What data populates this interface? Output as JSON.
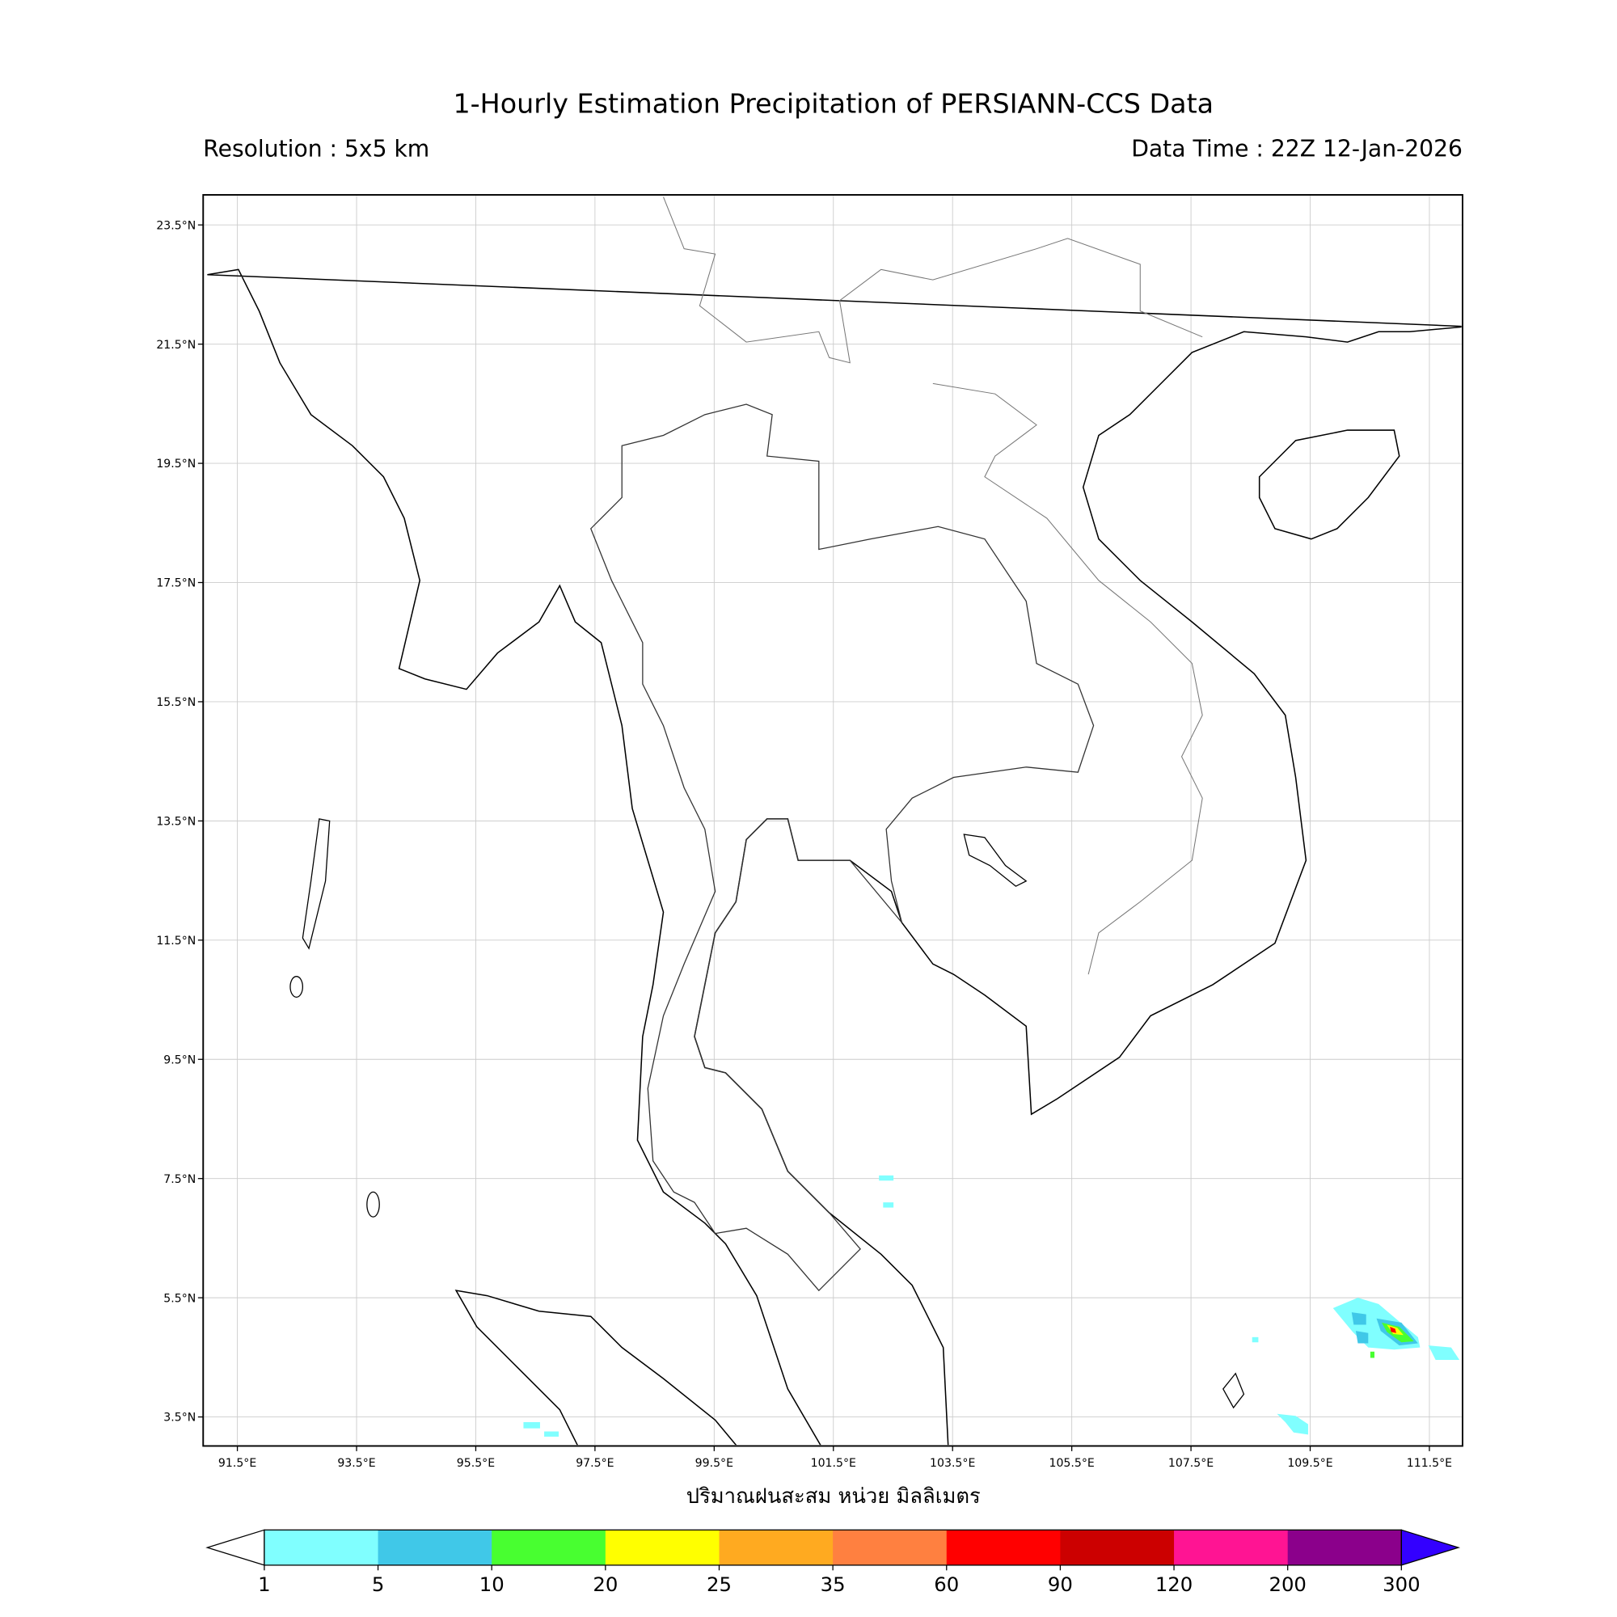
{
  "title": "1-Hourly Estimation Precipitation of PERSIANN-CCS Data",
  "resolution": "Resolution : 5x5 km",
  "data_time": "Data Time : 22Z 12-Jan-2026",
  "colorbar_label": "ปริมาณฝนสะสม หน่วย มิลลิเมตร",
  "map": {
    "lon_ticks": [
      "91.5°E",
      "93.5°E",
      "95.5°E",
      "97.5°E",
      "99.5°E",
      "101.5°E",
      "103.5°E",
      "105.5°E",
      "107.5°E",
      "109.5°E",
      "111.5°E"
    ],
    "lat_ticks": [
      "23.5°N",
      "21.5°N",
      "19.5°N",
      "17.5°N",
      "15.5°N",
      "13.5°N",
      "11.5°N",
      "9.5°N",
      "7.5°N",
      "5.5°N",
      "3.5°N"
    ],
    "grid": true
  },
  "colorbar": {
    "levels": [
      "1",
      "5",
      "10",
      "20",
      "25",
      "35",
      "60",
      "90",
      "120",
      "200",
      "300"
    ],
    "colors": [
      "#80ffff",
      "#40c8e8",
      "#48ff30",
      "#ffff00",
      "#ffaa20",
      "#ff8040",
      "#ff0000",
      "#cc0000",
      "#ff1493",
      "#8b008b"
    ],
    "extend_min_color": "#ffffff",
    "extend_max_color": "#3300ff"
  }
}
